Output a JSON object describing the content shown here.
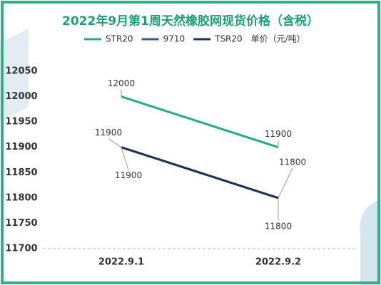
{
  "chart_data": {
    "type": "line",
    "title": "2022年9月第1周天然橡胶网现货价格（含税）",
    "unit_label": "单价（元/吨）",
    "categories": [
      "2022.9.1",
      "2022.9.2"
    ],
    "series": [
      {
        "name": "STR20",
        "color": "#1fae85",
        "values": [
          12000,
          11900
        ]
      },
      {
        "name": "9710",
        "color": "#3a5a8c",
        "values": [
          11900,
          11800
        ]
      },
      {
        "name": "TSR20",
        "color": "#1c3557",
        "values": [
          11900,
          11800
        ]
      }
    ],
    "ylim": [
      11700,
      12050
    ],
    "yticks": [
      11700,
      11750,
      11800,
      11850,
      11900,
      11950,
      12000,
      12050
    ],
    "grid": false
  }
}
